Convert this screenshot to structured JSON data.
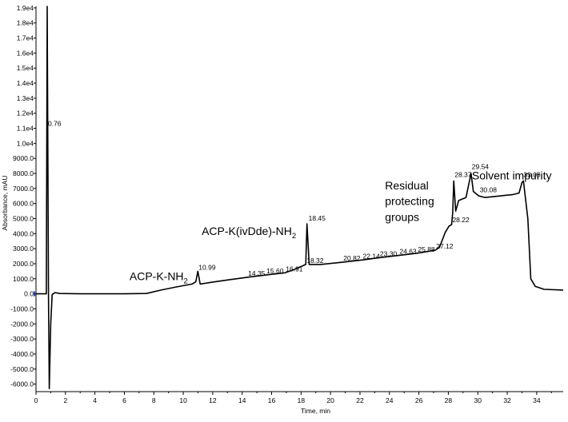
{
  "chart_data": {
    "type": "line",
    "xlabel": "Time, min",
    "ylabel": "Absorbance, mAU",
    "xlim": [
      0,
      35.8
    ],
    "ylim": [
      -6500,
      19100
    ],
    "x_ticks": [
      0,
      2,
      4,
      6,
      8,
      10,
      12,
      14,
      16,
      18,
      20,
      22,
      24,
      26,
      28,
      30,
      32,
      34
    ],
    "y_ticks": [
      {
        "value": 19000,
        "label": "1.9e4"
      },
      {
        "value": 18000,
        "label": "1.8e4"
      },
      {
        "value": 17000,
        "label": "1.7e4"
      },
      {
        "value": 16000,
        "label": "1.6e4"
      },
      {
        "value": 15000,
        "label": "1.5e4"
      },
      {
        "value": 14000,
        "label": "1.4e4"
      },
      {
        "value": 13000,
        "label": "1.3e4"
      },
      {
        "value": 12000,
        "label": "1.2e4"
      },
      {
        "value": 11000,
        "label": "1.1e4"
      },
      {
        "value": 10000,
        "label": "1.0e4"
      },
      {
        "value": 9000,
        "label": "9000.0"
      },
      {
        "value": 8000,
        "label": "8000.0"
      },
      {
        "value": 7000,
        "label": "7000.0"
      },
      {
        "value": 6000,
        "label": "6000.0"
      },
      {
        "value": 5000,
        "label": "5000.0"
      },
      {
        "value": 4000,
        "label": "4000.0"
      },
      {
        "value": 3000,
        "label": "3000.0"
      },
      {
        "value": 2000,
        "label": "2000.0"
      },
      {
        "value": 1000,
        "label": "1000.0"
      },
      {
        "value": 0,
        "label": "0.0"
      },
      {
        "value": -1000,
        "label": "-1000.0"
      },
      {
        "value": -2000,
        "label": "-2000.0"
      },
      {
        "value": -3000,
        "label": "-3000.0"
      },
      {
        "value": -4000,
        "label": "-4000.0"
      },
      {
        "value": -5000,
        "label": "-5000.0"
      },
      {
        "value": -6000,
        "label": "-6000.0"
      }
    ],
    "series": [
      {
        "color": "#000000",
        "points": [
          [
            0,
            0
          ],
          [
            0.7,
            0
          ],
          [
            0.76,
            19100
          ],
          [
            0.85,
            0
          ],
          [
            0.9,
            -6300
          ],
          [
            1.0,
            -2000
          ],
          [
            1.1,
            -50
          ],
          [
            1.3,
            80
          ],
          [
            1.6,
            20
          ],
          [
            3,
            0
          ],
          [
            6,
            0
          ],
          [
            7.5,
            20
          ],
          [
            8.5,
            250
          ],
          [
            9.5,
            450
          ],
          [
            10.6,
            650
          ],
          [
            10.85,
            800
          ],
          [
            10.99,
            1500
          ],
          [
            11.15,
            650
          ],
          [
            12,
            780
          ],
          [
            13,
            920
          ],
          [
            14.35,
            1100
          ],
          [
            15.6,
            1250
          ],
          [
            16.91,
            1400
          ],
          [
            17.5,
            1600
          ],
          [
            18.32,
            1950
          ],
          [
            18.4,
            4650
          ],
          [
            18.55,
            1950
          ],
          [
            19.3,
            1950
          ],
          [
            20.82,
            2100
          ],
          [
            22.14,
            2250
          ],
          [
            23.3,
            2400
          ],
          [
            24.63,
            2550
          ],
          [
            25.88,
            2700
          ],
          [
            26.5,
            2800
          ],
          [
            27.12,
            2900
          ],
          [
            27.4,
            3100
          ],
          [
            27.8,
            4100
          ],
          [
            28.05,
            4500
          ],
          [
            28.22,
            4600
          ],
          [
            28.3,
            5400
          ],
          [
            28.37,
            7500
          ],
          [
            28.5,
            5500
          ],
          [
            28.7,
            6200
          ],
          [
            29.2,
            6400
          ],
          [
            29.54,
            8000
          ],
          [
            29.7,
            6800
          ],
          [
            30.08,
            6500
          ],
          [
            30.5,
            6400
          ],
          [
            31.5,
            6500
          ],
          [
            32.4,
            6600
          ],
          [
            32.8,
            6700
          ],
          [
            33.0,
            7400
          ],
          [
            33.1,
            7500
          ],
          [
            33.4,
            5000
          ],
          [
            33.6,
            1000
          ],
          [
            33.9,
            500
          ],
          [
            34.5,
            300
          ],
          [
            35.8,
            250
          ]
        ]
      }
    ],
    "peak_labels": [
      {
        "text": "0.76",
        "x": 0.76,
        "y": 11100
      },
      {
        "text": "10.99",
        "x": 10.99,
        "y": 1550
      },
      {
        "text": "14.35",
        "x": 14.35,
        "y": 1150
      },
      {
        "text": "15.60",
        "x": 15.6,
        "y": 1300
      },
      {
        "text": "16.91",
        "x": 16.91,
        "y": 1450
      },
      {
        "text": "18.32",
        "x": 18.32,
        "y": 2000
      },
      {
        "text": "18.45",
        "x": 18.45,
        "y": 4800
      },
      {
        "text": "20.82",
        "x": 20.82,
        "y": 2150
      },
      {
        "text": "22.14",
        "x": 22.14,
        "y": 2300
      },
      {
        "text": "23.30",
        "x": 23.3,
        "y": 2450
      },
      {
        "text": "24.63",
        "x": 24.63,
        "y": 2600
      },
      {
        "text": "25.88",
        "x": 25.88,
        "y": 2750
      },
      {
        "text": "27.12",
        "x": 27.12,
        "y": 2950
      },
      {
        "text": "28.22",
        "x": 28.22,
        "y": 4700
      },
      {
        "text": "28.37",
        "x": 28.37,
        "y": 7700
      },
      {
        "text": "29.54",
        "x": 29.54,
        "y": 8250
      },
      {
        "text": "30.08",
        "x": 30.08,
        "y": 6700
      },
      {
        "text": "33.05",
        "x": 33.05,
        "y": 7700
      }
    ],
    "annotations": [
      {
        "main": "ACP-K-NH",
        "sub": "2",
        "x": 6.35,
        "y": 900
      },
      {
        "main": "ACP-K(ivDde)-NH",
        "sub": "2",
        "x": 11.25,
        "y": 3900
      },
      {
        "main": "Residual",
        "x": 23.7,
        "y": 6950
      },
      {
        "main": "protecting",
        "x": 23.7,
        "y": 5900
      },
      {
        "main": "groups",
        "x": 23.7,
        "y": 4850
      },
      {
        "main": "Solvent impurity",
        "x": 29.6,
        "y": 7600
      }
    ]
  }
}
